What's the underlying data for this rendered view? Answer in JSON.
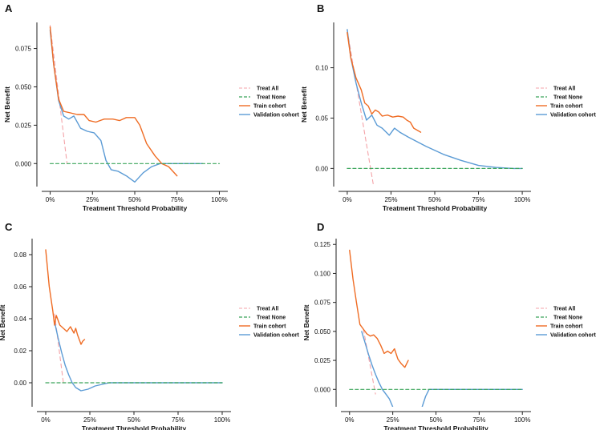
{
  "colors": {
    "treat_all": "#f4a3a8",
    "treat_none": "#3aa55a",
    "train": "#ef6c24",
    "validation": "#5b9bd5"
  },
  "chart_data": [
    {
      "panel": "A",
      "type": "line",
      "xlabel": "Treatment Threshold Probability",
      "ylabel": "Net Benefit",
      "xlim": [
        -0.05,
        1.05
      ],
      "ylim": [
        -0.015,
        0.092
      ],
      "xticks": [
        0,
        0.25,
        0.5,
        0.75,
        1.0
      ],
      "xtick_labels": [
        "0%",
        "25%",
        "50%",
        "75%",
        "100%"
      ],
      "yticks": [
        0.0,
        0.025,
        0.05,
        0.075
      ],
      "ytick_labels": [
        "0.000",
        "0.025",
        "0.050",
        "0.075"
      ],
      "legend": [
        "Treat All",
        "Treat None",
        "Train cohort",
        "Validation cohort"
      ],
      "series": [
        {
          "name": "Treat All",
          "x": [
            0,
            0.1
          ],
          "y": [
            0.09,
            0.0
          ]
        },
        {
          "name": "Treat None",
          "x": [
            0,
            1.0
          ],
          "y": [
            0,
            0
          ]
        },
        {
          "name": "Train cohort",
          "x": [
            0,
            0.02,
            0.05,
            0.08,
            0.12,
            0.16,
            0.2,
            0.23,
            0.27,
            0.32,
            0.37,
            0.41,
            0.45,
            0.5,
            0.53,
            0.57,
            0.62,
            0.66,
            0.7,
            0.75
          ],
          "y": [
            0.089,
            0.065,
            0.042,
            0.034,
            0.033,
            0.032,
            0.032,
            0.028,
            0.027,
            0.029,
            0.029,
            0.028,
            0.03,
            0.03,
            0.025,
            0.013,
            0.005,
            0.0,
            -0.002,
            -0.008
          ]
        },
        {
          "name": "Validation cohort",
          "x": [
            0,
            0.02,
            0.05,
            0.08,
            0.11,
            0.14,
            0.18,
            0.22,
            0.26,
            0.3,
            0.33,
            0.36,
            0.4,
            0.45,
            0.5,
            0.55,
            0.6,
            0.65,
            0.7,
            0.8,
            0.9
          ],
          "y": [
            0.087,
            0.065,
            0.041,
            0.031,
            0.029,
            0.031,
            0.023,
            0.021,
            0.02,
            0.015,
            0.002,
            -0.004,
            -0.005,
            -0.008,
            -0.012,
            -0.006,
            -0.002,
            0.0,
            0.0,
            0.0,
            0.0
          ]
        }
      ]
    },
    {
      "panel": "B",
      "type": "line",
      "xlabel": "Treatment Threshold Probability",
      "ylabel": "Net Benefit",
      "xlim": [
        -0.05,
        1.05
      ],
      "ylim": [
        -0.018,
        0.145
      ],
      "xticks": [
        0,
        0.25,
        0.5,
        0.75,
        1.0
      ],
      "xtick_labels": [
        "0%",
        "25%",
        "50%",
        "75%",
        "100%"
      ],
      "yticks": [
        0.0,
        0.05,
        0.1
      ],
      "ytick_labels": [
        "0.00",
        "0.05",
        "0.10"
      ],
      "legend": [
        "Treat All",
        "Treat None",
        "Train cohort",
        "Validation cohort"
      ],
      "series": [
        {
          "name": "Treat All",
          "x": [
            0,
            0.15
          ],
          "y": [
            0.137,
            -0.017
          ]
        },
        {
          "name": "Treat None",
          "x": [
            0,
            1.0
          ],
          "y": [
            0,
            0
          ]
        },
        {
          "name": "Train cohort",
          "x": [
            0,
            0.02,
            0.05,
            0.08,
            0.1,
            0.12,
            0.14,
            0.16,
            0.18,
            0.2,
            0.23,
            0.26,
            0.29,
            0.32,
            0.34,
            0.36,
            0.38,
            0.4,
            0.42
          ],
          "y": [
            0.135,
            0.11,
            0.09,
            0.078,
            0.065,
            0.062,
            0.054,
            0.058,
            0.056,
            0.052,
            0.053,
            0.051,
            0.052,
            0.051,
            0.048,
            0.046,
            0.04,
            0.038,
            0.036
          ]
        },
        {
          "name": "Validation cohort",
          "x": [
            0,
            0.02,
            0.05,
            0.08,
            0.11,
            0.14,
            0.17,
            0.2,
            0.24,
            0.27,
            0.3,
            0.35,
            0.45,
            0.55,
            0.65,
            0.75,
            0.85,
            0.95,
            1.0
          ],
          "y": [
            0.138,
            0.11,
            0.085,
            0.065,
            0.048,
            0.053,
            0.043,
            0.04,
            0.033,
            0.04,
            0.036,
            0.031,
            0.022,
            0.014,
            0.008,
            0.003,
            0.001,
            0.0,
            0.0
          ]
        }
      ]
    },
    {
      "panel": "C",
      "type": "line",
      "xlabel": "Treatment Threshold Probability",
      "ylabel": "Net Benefit",
      "xlim": [
        -0.05,
        1.05
      ],
      "ylim": [
        -0.015,
        0.09
      ],
      "xticks": [
        0,
        0.25,
        0.5,
        0.75,
        1.0
      ],
      "xtick_labels": [
        "0%",
        "25%",
        "50%",
        "75%",
        "100%"
      ],
      "yticks": [
        0.0,
        0.02,
        0.04,
        0.06,
        0.08
      ],
      "ytick_labels": [
        "0.00",
        "0.02",
        "0.04",
        "0.06",
        "0.08"
      ],
      "legend": [
        "Treat All",
        "Treat None",
        "Train cohort",
        "Validation cohort"
      ],
      "series": [
        {
          "name": "Treat All",
          "x": [
            0.05,
            0.1
          ],
          "y": [
            0.043,
            0.0
          ]
        },
        {
          "name": "Treat None",
          "x": [
            0,
            1.0
          ],
          "y": [
            0,
            0
          ]
        },
        {
          "name": "Train cohort",
          "x": [
            0,
            0.02,
            0.04,
            0.05,
            0.06,
            0.08,
            0.1,
            0.12,
            0.14,
            0.16,
            0.17,
            0.18,
            0.2,
            0.21,
            0.22
          ],
          "y": [
            0.083,
            0.06,
            0.045,
            0.036,
            0.042,
            0.036,
            0.034,
            0.032,
            0.035,
            0.031,
            0.034,
            0.03,
            0.024,
            0.026,
            0.027
          ]
        },
        {
          "name": "Validation cohort",
          "x": [
            0.05,
            0.07,
            0.09,
            0.11,
            0.13,
            0.15,
            0.17,
            0.2,
            0.24,
            0.28,
            0.32,
            0.36,
            0.5,
            0.75,
            1.0
          ],
          "y": [
            0.038,
            0.028,
            0.019,
            0.011,
            0.005,
            0.0,
            -0.003,
            -0.005,
            -0.004,
            -0.002,
            -0.001,
            0.0,
            0.0,
            0.0,
            0.0
          ]
        }
      ]
    },
    {
      "panel": "D",
      "type": "line",
      "xlabel": "Treatment Threshold Probability",
      "ylabel": "Net Benefit",
      "xlim": [
        -0.05,
        1.05
      ],
      "ylim": [
        -0.015,
        0.13
      ],
      "xticks": [
        0,
        0.25,
        0.5,
        0.75,
        1.0
      ],
      "xtick_labels": [
        "0%",
        "25%",
        "50%",
        "75%",
        "100%"
      ],
      "yticks": [
        0.0,
        0.025,
        0.05,
        0.075,
        0.1,
        0.125
      ],
      "ytick_labels": [
        "0.000",
        "0.025",
        "0.050",
        "0.075",
        "0.100",
        "0.125"
      ],
      "legend": [
        "Treat All",
        "Treat None",
        "Train cohort",
        "Validation cohort"
      ],
      "series": [
        {
          "name": "Treat All",
          "x": [
            0.08,
            0.15
          ],
          "y": [
            0.052,
            -0.004
          ]
        },
        {
          "name": "Treat None",
          "x": [
            0,
            1.0
          ],
          "y": [
            0,
            0
          ]
        },
        {
          "name": "Train cohort",
          "x": [
            0,
            0.02,
            0.04,
            0.06,
            0.08,
            0.1,
            0.12,
            0.14,
            0.16,
            0.18,
            0.2,
            0.22,
            0.24,
            0.26,
            0.28,
            0.3,
            0.32,
            0.34
          ],
          "y": [
            0.12,
            0.095,
            0.075,
            0.056,
            0.052,
            0.048,
            0.046,
            0.047,
            0.044,
            0.038,
            0.031,
            0.033,
            0.031,
            0.035,
            0.026,
            0.022,
            0.019,
            0.025
          ]
        },
        {
          "name": "Validation cohort",
          "x": [
            0.07,
            0.09,
            0.11,
            0.13,
            0.15,
            0.17,
            0.19,
            0.21,
            0.23,
            0.25
          ],
          "y": [
            0.05,
            0.04,
            0.03,
            0.021,
            0.013,
            0.006,
            0.0,
            -0.004,
            -0.008,
            -0.015
          ]
        },
        {
          "name": "Validation cohort",
          "x": [
            0.42,
            0.44,
            0.46,
            0.5,
            0.75,
            1.0
          ],
          "y": [
            -0.015,
            -0.006,
            0.0,
            0.0,
            0.0,
            0.0
          ]
        }
      ]
    }
  ]
}
